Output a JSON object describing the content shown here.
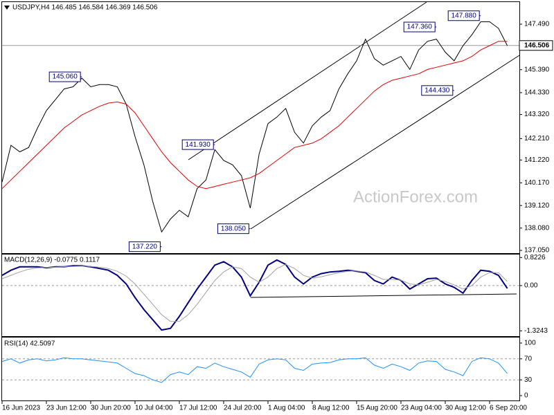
{
  "chart_data": [
    {
      "type": "line",
      "title": "USDJPY,H4  146.485 146.584 146.369 146.506",
      "watermark": "ActionForex.com",
      "categories": [
        "16 Jun 2023",
        null,
        null,
        null,
        null,
        "23 Jun 12:00",
        null,
        null,
        null,
        null,
        "30 Jun 20:00",
        null,
        null,
        null,
        null,
        "10 Jul 04:00",
        null,
        null,
        null,
        null,
        "17 Jul 12:00",
        null,
        null,
        null,
        null,
        "24 Jul 20:00",
        null,
        null,
        null,
        null,
        "1 Aug 04:00",
        null,
        null,
        null,
        null,
        "8 Aug 12:00",
        null,
        null,
        null,
        null,
        "15 Aug 20:00",
        null,
        null,
        null,
        null,
        "23 Aug 04:00",
        null,
        null,
        null,
        null,
        "30 Aug 12:00",
        null,
        null,
        null,
        null,
        "6 Sep 20:00",
        null,
        null
      ],
      "series": [
        {
          "color": "#000000",
          "values": [
            140.2,
            141.9,
            141.6,
            141.8,
            142.7,
            143.5,
            144.0,
            144.5,
            144.6,
            145.0,
            144.6,
            144.7,
            144.7,
            144.6,
            143.8,
            142.3,
            141.0,
            139.3,
            137.9,
            138.5,
            138.9,
            138.6,
            139.9,
            140.3,
            141.7,
            141.2,
            141.0,
            140.5,
            139.0,
            141.5,
            142.9,
            143.2,
            143.6,
            142.5,
            142.0,
            142.8,
            143.2,
            143.5,
            144.5,
            145.2,
            145.8,
            146.8,
            145.9,
            145.6,
            145.8,
            146.0,
            145.4,
            146.3,
            146.7,
            146.8,
            146.2,
            145.8,
            146.5,
            147.0,
            147.6,
            147.6,
            147.3,
            146.5
          ]
        },
        {
          "color": "#e00000",
          "values": [
            139.9,
            140.3,
            140.7,
            141.1,
            141.5,
            141.9,
            142.3,
            142.7,
            143.0,
            143.3,
            143.5,
            143.7,
            143.85,
            143.9,
            143.8,
            143.4,
            142.8,
            142.2,
            141.6,
            141.1,
            140.7,
            140.3,
            140.0,
            139.9,
            140.0,
            140.1,
            140.2,
            140.3,
            140.4,
            140.6,
            140.9,
            141.2,
            141.5,
            141.8,
            141.9,
            142.0,
            142.2,
            142.5,
            142.8,
            143.2,
            143.6,
            144.0,
            144.4,
            144.7,
            144.9,
            145.0,
            145.1,
            145.2,
            145.4,
            145.5,
            145.6,
            145.7,
            145.8,
            146.0,
            146.3,
            146.5,
            146.7,
            146.7
          ]
        }
      ],
      "ylim": [
        136.89,
        148.51
      ],
      "yticks": [
        {
          "value": 147.49,
          "label": "147.490"
        },
        {
          "value": 145.39,
          "label": "145.390"
        },
        {
          "value": 144.33,
          "label": "144.330"
        },
        {
          "value": 143.32,
          "label": "143.320"
        },
        {
          "value": 142.21,
          "label": "142.210"
        },
        {
          "value": 141.22,
          "label": "141.220"
        },
        {
          "value": 140.17,
          "label": "140.170"
        },
        {
          "value": 139.12,
          "label": "139.120"
        },
        {
          "value": 138.08,
          "label": "138.080"
        },
        {
          "value": 137.05,
          "label": "137.050"
        }
      ],
      "last_price": {
        "value": 146.506,
        "label": "146.506"
      },
      "annotations": [
        {
          "x": 9,
          "value": 145.06,
          "label": "145.060"
        },
        {
          "x": 18,
          "value": 137.22,
          "label": "137.220"
        },
        {
          "x": 24,
          "value": 141.93,
          "label": "141.930"
        },
        {
          "x": 28,
          "value": 138.05,
          "label": "138.050"
        },
        {
          "x": 49,
          "value": 147.36,
          "label": "147.360"
        },
        {
          "x": 51,
          "value": 144.43,
          "label": "144.430"
        },
        {
          "x": 54,
          "value": 147.88,
          "label": "147.880"
        }
      ]
    },
    {
      "type": "line",
      "title": "MACD(12,26,9) -0.0775 0.1117",
      "series": [
        {
          "color": "#000080",
          "values": [
            0.3,
            0.45,
            0.55,
            0.55,
            0.55,
            0.52,
            0.55,
            0.55,
            0.58,
            0.58,
            0.55,
            0.5,
            0.45,
            0.3,
            0.05,
            -0.35,
            -0.7,
            -1.0,
            -1.3,
            -1.25,
            -0.9,
            -0.5,
            -0.1,
            0.25,
            0.6,
            0.7,
            0.55,
            0.25,
            -0.3,
            0.1,
            0.6,
            0.75,
            0.62,
            0.25,
            0.05,
            0.25,
            0.35,
            0.4,
            0.42,
            0.45,
            0.42,
            0.38,
            0.15,
            0.05,
            0.25,
            0.15,
            -0.1,
            0.05,
            0.2,
            0.22,
            0.05,
            -0.05,
            -0.22,
            0.15,
            0.45,
            0.42,
            0.3,
            -0.08
          ]
        },
        {
          "color": "#a0a0a0",
          "values": [
            0.2,
            0.3,
            0.4,
            0.48,
            0.52,
            0.53,
            0.54,
            0.55,
            0.56,
            0.57,
            0.56,
            0.54,
            0.5,
            0.42,
            0.28,
            0.05,
            -0.25,
            -0.55,
            -0.85,
            -1.05,
            -1.05,
            -0.85,
            -0.55,
            -0.2,
            0.15,
            0.4,
            0.55,
            0.5,
            0.25,
            0.1,
            0.25,
            0.5,
            0.62,
            0.5,
            0.3,
            0.22,
            0.26,
            0.32,
            0.38,
            0.42,
            0.43,
            0.4,
            0.3,
            0.18,
            0.18,
            0.16,
            0.05,
            0.02,
            0.1,
            0.18,
            0.12,
            0.02,
            -0.1,
            0.0,
            0.25,
            0.38,
            0.38,
            0.12
          ]
        }
      ],
      "ylim": [
        -1.5,
        0.93
      ],
      "yticks": [
        0.8226,
        {
          "value": 0,
          "label": "0.00"
        },
        -1.3243
      ],
      "levels": [
        0
      ]
    },
    {
      "type": "line",
      "title": "RSI(14) 42.5097",
      "series": [
        {
          "color": "#1e90ff",
          "values": [
            65,
            70,
            62,
            68,
            70,
            66,
            68,
            72,
            70,
            70,
            68,
            66,
            64,
            62,
            52,
            42,
            38,
            30,
            25,
            40,
            45,
            40,
            55,
            52,
            62,
            55,
            50,
            45,
            35,
            60,
            68,
            70,
            68,
            52,
            48,
            60,
            62,
            63,
            68,
            70,
            70,
            72,
            58,
            52,
            60,
            55,
            48,
            62,
            66,
            65,
            50,
            45,
            38,
            65,
            72,
            70,
            62,
            42
          ]
        }
      ],
      "ylim": [
        -10.5,
        111.8
      ],
      "yticks": [
        100,
        70,
        30,
        0
      ],
      "levels": [
        70,
        30
      ]
    }
  ]
}
